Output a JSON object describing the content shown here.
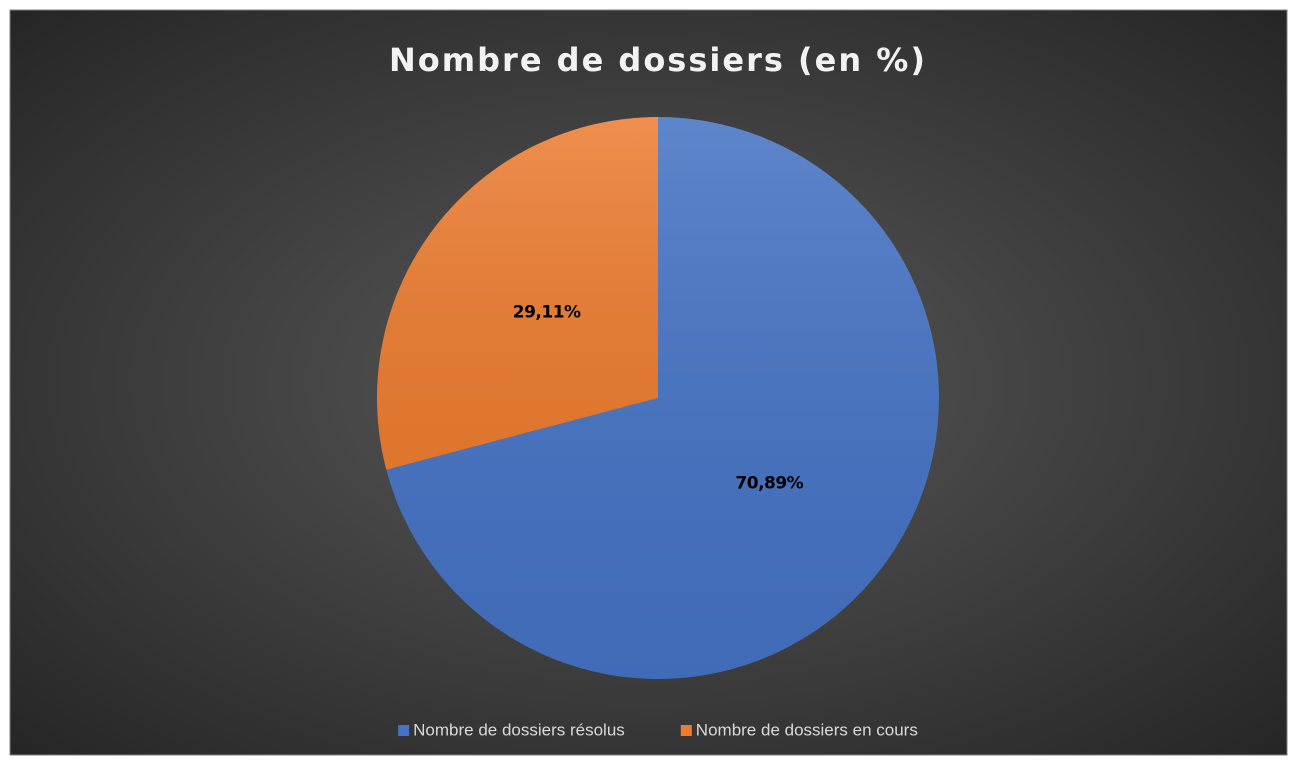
{
  "chart_data": {
    "type": "pie",
    "title": "Nombre de dossiers (en %)",
    "categories": [
      "Nombre de dossiers résolus",
      "Nombre de dossiers en cours"
    ],
    "values": [
      70.89,
      29.11
    ],
    "value_labels": [
      "70,89%",
      "29,11%"
    ],
    "colors": [
      "#4472c4",
      "#ed7d31"
    ],
    "legend": "bottom"
  }
}
